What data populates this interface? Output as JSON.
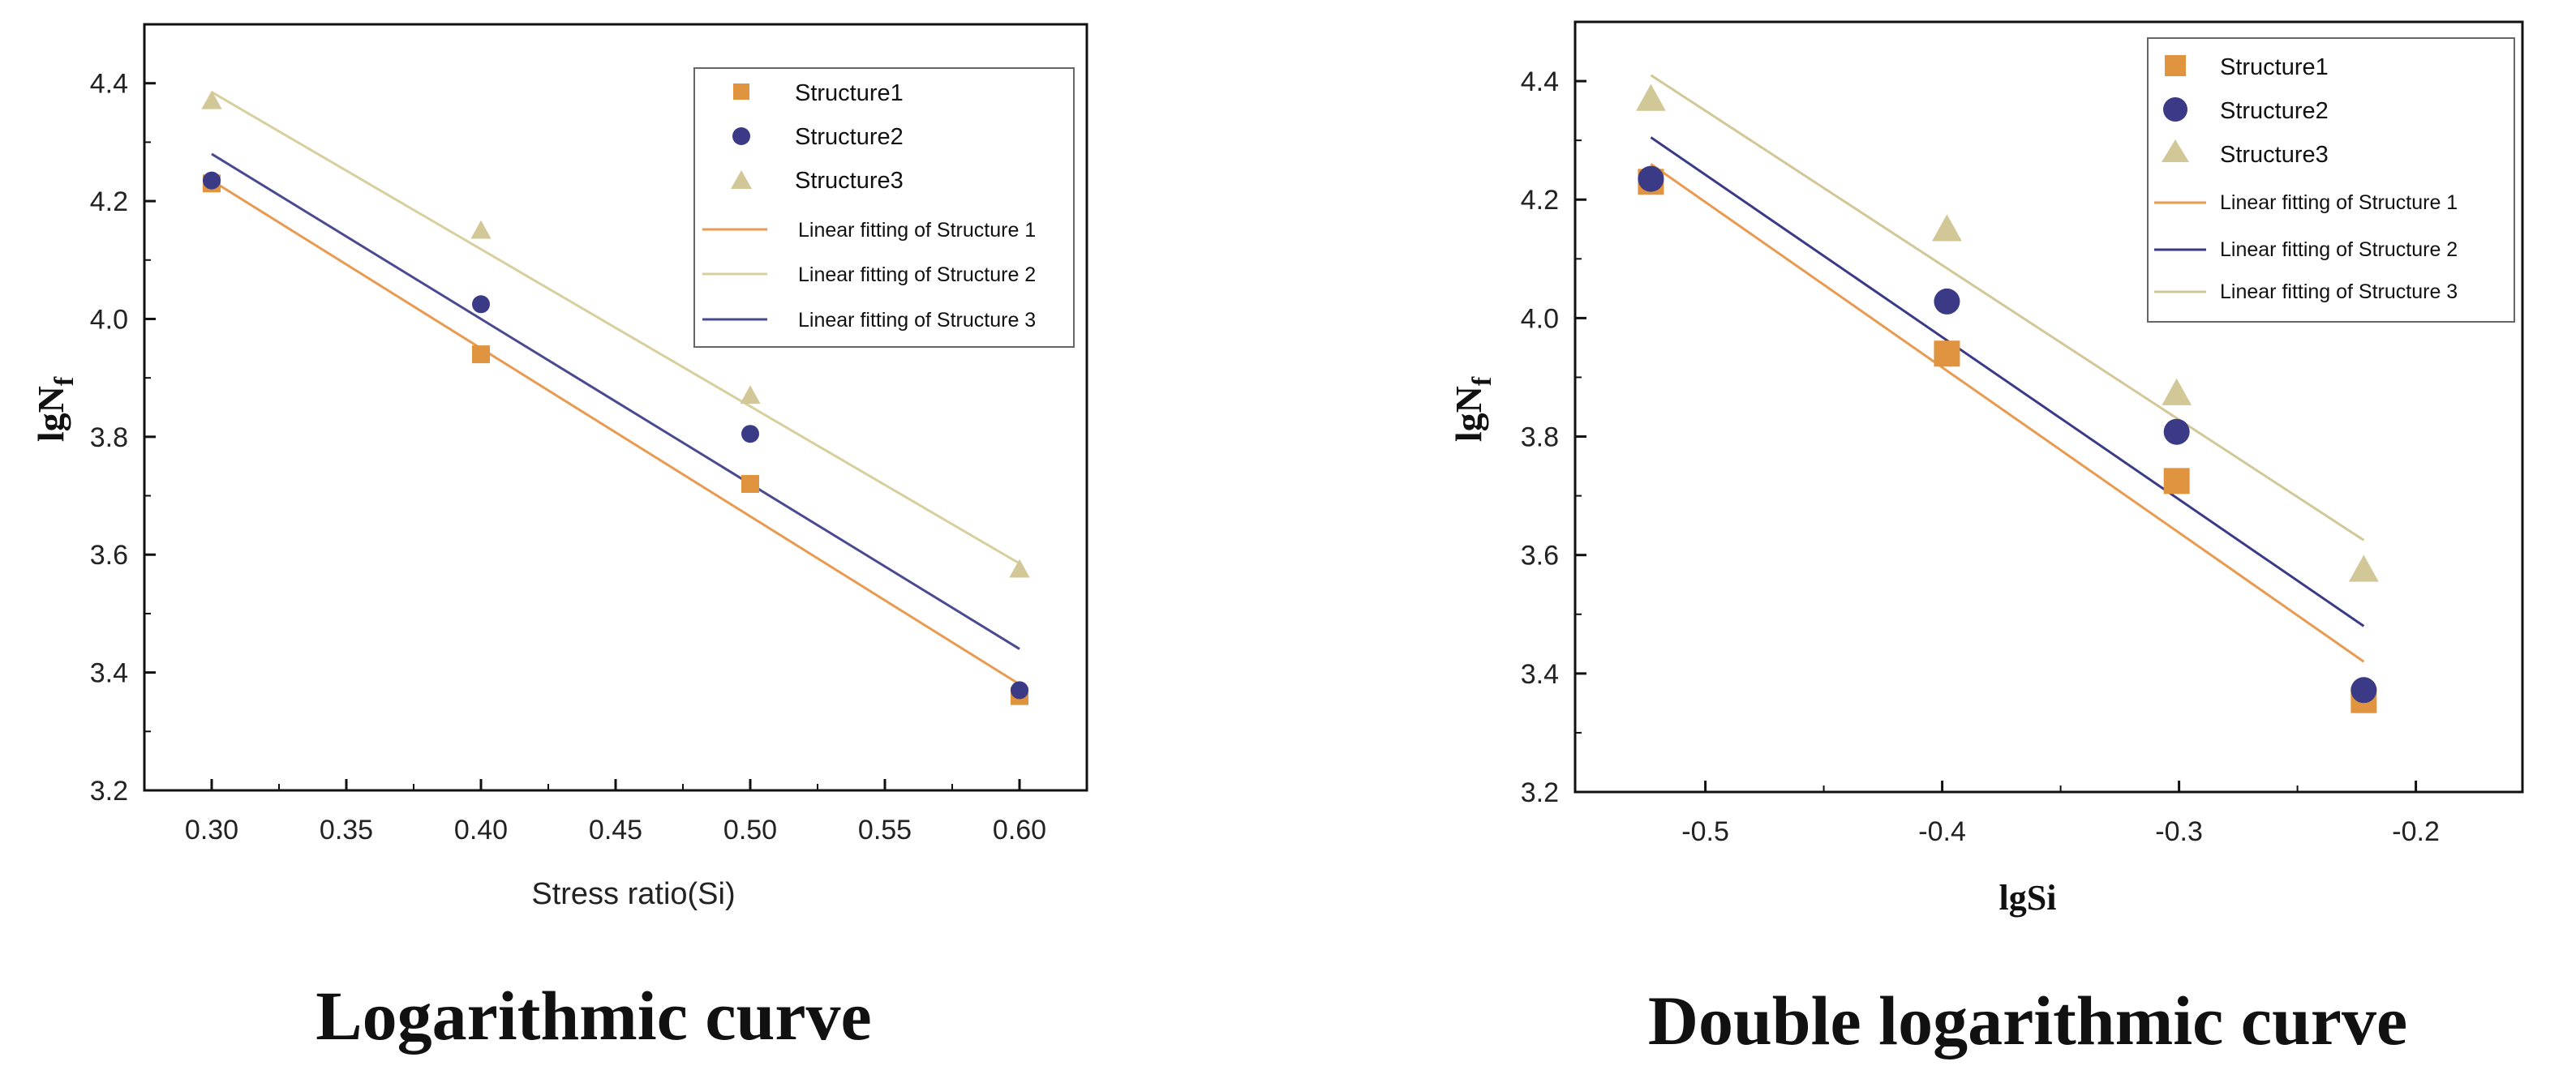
{
  "colors": {
    "s1": "#e0943f",
    "s2": "#3a3a86",
    "s3": "#d2c897",
    "fit1": "#e89a50",
    "fit2_line_left": "#d8cf9e",
    "fit3_line_left": "#4a4a90"
  },
  "chart_data": [
    {
      "type": "scatter",
      "title": "",
      "caption": "Logarithmic curve",
      "xlabel": "Stress ratio(Si)",
      "ylabel_main": "lgN",
      "ylabel_sub": "f",
      "xlim": [
        0.275,
        0.625
      ],
      "ylim": [
        3.2,
        4.5
      ],
      "xticks": [
        0.3,
        0.35,
        0.4,
        0.45,
        0.5,
        0.55,
        0.6
      ],
      "xtick_labels": [
        "0.30",
        "0.35",
        "0.40",
        "0.45",
        "0.50",
        "0.55",
        "0.60"
      ],
      "yticks": [
        3.2,
        3.4,
        3.6,
        3.8,
        4.0,
        4.2,
        4.4
      ],
      "ytick_labels": [
        "3.2",
        "3.4",
        "3.6",
        "3.8",
        "4.0",
        "4.2",
        "4.4"
      ],
      "legend_position": "top-right",
      "series": [
        {
          "name": "Structure1",
          "marker": "square",
          "x": [
            0.3,
            0.4,
            0.5,
            0.6
          ],
          "y": [
            4.23,
            3.94,
            3.72,
            3.36
          ]
        },
        {
          "name": "Structure2",
          "marker": "circle",
          "x": [
            0.3,
            0.4,
            0.5,
            0.6
          ],
          "y": [
            4.235,
            4.025,
            3.805,
            3.37
          ]
        },
        {
          "name": "Structure3",
          "marker": "triangle",
          "x": [
            0.3,
            0.4,
            0.5,
            0.6
          ],
          "y": [
            4.37,
            4.15,
            3.87,
            3.575
          ]
        }
      ],
      "fits": [
        {
          "name": "Linear fitting of Structure 1",
          "x": [
            0.3,
            0.6
          ],
          "y": [
            4.235,
            3.38
          ]
        },
        {
          "name": "Linear fitting of Structure 2",
          "x": [
            0.3,
            0.6
          ],
          "y": [
            4.385,
            3.585
          ]
        },
        {
          "name": "Linear fitting of Structure 3",
          "x": [
            0.3,
            0.6
          ],
          "y": [
            4.28,
            3.44
          ]
        }
      ]
    },
    {
      "type": "scatter",
      "title": "",
      "caption": "Double logarithmic curve",
      "xlabel": "lgSi",
      "ylabel_main": "lgN",
      "ylabel_sub": "f",
      "xlim": [
        -0.555,
        -0.155
      ],
      "ylim": [
        3.2,
        4.5
      ],
      "xticks": [
        -0.5,
        -0.4,
        -0.3,
        -0.2
      ],
      "xtick_labels": [
        "-0.5",
        "-0.4",
        "-0.3",
        "-0.2"
      ],
      "yticks": [
        3.2,
        3.4,
        3.6,
        3.8,
        4.0,
        4.2,
        4.4
      ],
      "ytick_labels": [
        "3.2",
        "3.4",
        "3.6",
        "3.8",
        "4.0",
        "4.2",
        "4.4"
      ],
      "legend_position": "top-right",
      "series": [
        {
          "name": "Structure1",
          "marker": "square",
          "x": [
            -0.523,
            -0.398,
            -0.301,
            -0.222
          ],
          "y": [
            4.23,
            3.94,
            3.725,
            3.355
          ]
        },
        {
          "name": "Structure2",
          "marker": "circle",
          "x": [
            -0.523,
            -0.398,
            -0.301,
            -0.222
          ],
          "y": [
            4.235,
            4.028,
            3.808,
            3.372
          ]
        },
        {
          "name": "Structure3",
          "marker": "triangle",
          "x": [
            -0.523,
            -0.398,
            -0.301,
            -0.222
          ],
          "y": [
            4.37,
            4.15,
            3.873,
            3.575
          ]
        }
      ],
      "fits": [
        {
          "name": "Linear fitting of Structure 1",
          "x": [
            -0.523,
            -0.222
          ],
          "y": [
            4.26,
            3.42
          ]
        },
        {
          "name": "Linear fitting of Structure 2",
          "x": [
            -0.523,
            -0.222
          ],
          "y": [
            4.305,
            3.48
          ]
        },
        {
          "name": "Linear fitting of Structure 3",
          "x": [
            -0.523,
            -0.222
          ],
          "y": [
            4.41,
            3.625
          ]
        }
      ]
    }
  ]
}
